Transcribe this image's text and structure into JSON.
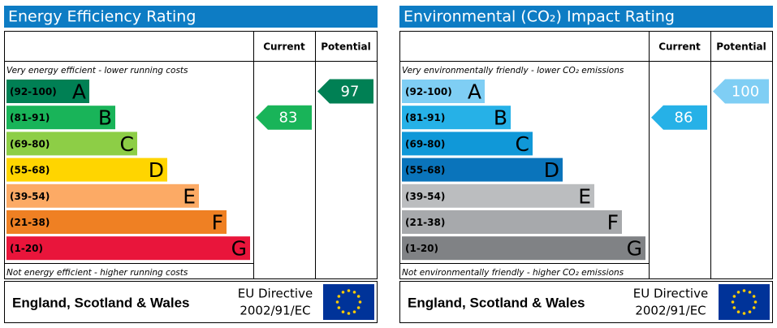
{
  "panels": [
    {
      "title": "Energy Efficiency Rating",
      "current_header": "Current",
      "potential_header": "Potential",
      "top_note": "Very energy efficient - lower running costs",
      "bottom_note": "Not energy efficient - higher running costs",
      "bands": [
        {
          "range": "(92-100)",
          "letter": "A",
          "color": "#008054"
        },
        {
          "range": "(81-91)",
          "letter": "B",
          "color": "#19b459"
        },
        {
          "range": "(69-80)",
          "letter": "C",
          "color": "#8dce46"
        },
        {
          "range": "(55-68)",
          "letter": "D",
          "color": "#ffd500"
        },
        {
          "range": "(39-54)",
          "letter": "E",
          "color": "#fcaa65"
        },
        {
          "range": "(21-38)",
          "letter": "F",
          "color": "#ef8023"
        },
        {
          "range": "(1-20)",
          "letter": "G",
          "color": "#e9153b"
        }
      ],
      "current": 83,
      "potential": 97,
      "region": "England, Scotland & Wales",
      "directive": "EU Directive",
      "directive_code": "2002/91/EC"
    },
    {
      "title": "Environmental (CO₂) Impact Rating",
      "current_header": "Current",
      "potential_header": "Potential",
      "top_note": "Very environmentally friendly - lower CO₂ emissions",
      "bottom_note": "Not environmentally friendly - higher CO₂ emissions",
      "bands": [
        {
          "range": "(92-100)",
          "letter": "A",
          "color": "#7fcef4"
        },
        {
          "range": "(81-91)",
          "letter": "B",
          "color": "#26b1e7"
        },
        {
          "range": "(69-80)",
          "letter": "C",
          "color": "#1098d8"
        },
        {
          "range": "(55-68)",
          "letter": "D",
          "color": "#0a74bb"
        },
        {
          "range": "(39-54)",
          "letter": "E",
          "color": "#bbbdbf"
        },
        {
          "range": "(21-38)",
          "letter": "F",
          "color": "#a7a9ac"
        },
        {
          "range": "(1-20)",
          "letter": "G",
          "color": "#808285"
        }
      ],
      "current": 86,
      "potential": 100,
      "region": "England, Scotland & Wales",
      "directive": "EU Directive",
      "directive_code": "2002/91/EC"
    }
  ]
}
